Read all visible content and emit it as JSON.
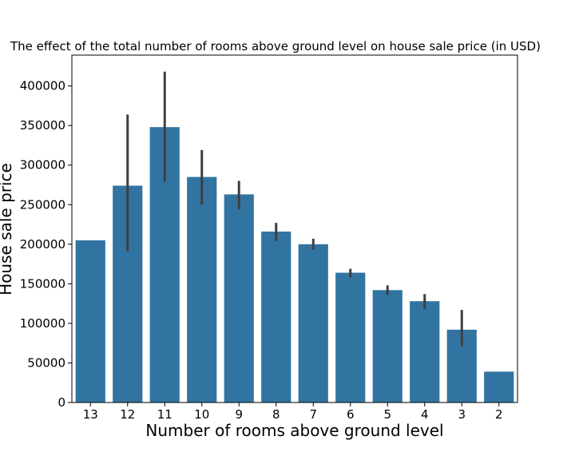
{
  "chart_data": {
    "type": "bar",
    "title": "The effect of the total number of rooms above ground level on house sale price (in USD)",
    "xlabel": "Number of rooms above ground level",
    "ylabel": "House sale price",
    "categories": [
      "13",
      "12",
      "11",
      "10",
      "9",
      "8",
      "7",
      "6",
      "5",
      "4",
      "3",
      "2"
    ],
    "values": [
      205000,
      274000,
      348000,
      285000,
      263000,
      216000,
      200000,
      164000,
      142000,
      128000,
      92000,
      39000
    ],
    "error_low": [
      205000,
      191000,
      279000,
      250000,
      244000,
      204000,
      193000,
      158000,
      136000,
      118000,
      71000,
      39000
    ],
    "error_high": [
      205000,
      364000,
      418000,
      319000,
      280000,
      227000,
      207000,
      169000,
      148000,
      137000,
      117000,
      39000
    ],
    "yticks": [
      0,
      50000,
      100000,
      150000,
      200000,
      250000,
      300000,
      350000,
      400000
    ],
    "ylim": [
      0,
      439000
    ],
    "grid": false,
    "colors": {
      "bar": "#3274a1",
      "error": "#3f3f3f",
      "axis": "#000000"
    }
  }
}
